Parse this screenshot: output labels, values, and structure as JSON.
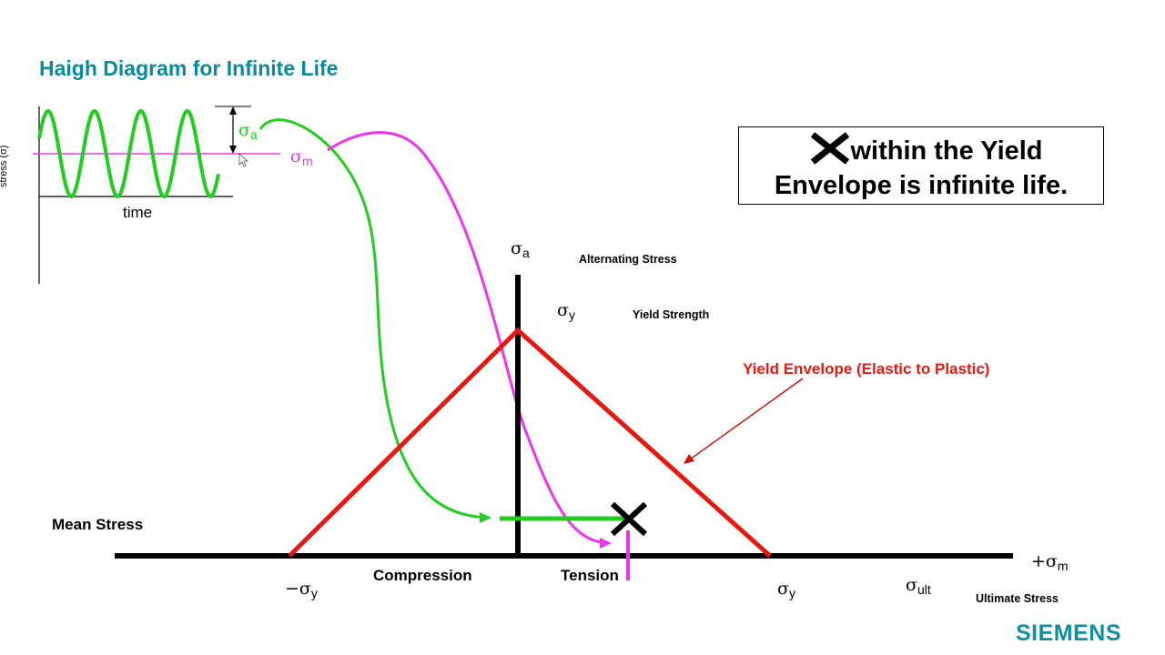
{
  "title": "Haigh Diagram for Infinite Life",
  "callout": {
    "icon": "x-mark-icon",
    "line1": "within the Yield",
    "line2": "Envelope is infinite life."
  },
  "inset": {
    "ylabel": "stress (σ)",
    "xlabel": "time",
    "sigma_a": "σ",
    "sigma_a_sub": "a",
    "sigma_m": "σ",
    "sigma_m_sub": "m"
  },
  "labels": {
    "sigma_a_axis": "σ",
    "sigma_a_axis_sub": "a",
    "alternating_stress": "Alternating Stress",
    "sigma_y_top": "σ",
    "sigma_y_top_sub": "y",
    "yield_strength": "Yield Strength",
    "yield_envelope": "Yield Envelope (Elastic to Plastic)",
    "mean_stress": "Mean Stress",
    "neg_sigma_y": "−σ",
    "neg_sigma_y_sub": "y",
    "compression": "Compression",
    "tension": "Tension",
    "pos_sigma_y": "σ",
    "pos_sigma_y_sub": "y",
    "sigma_ult": "σ",
    "sigma_ult_sub": "ult",
    "ultimate_stress": "Ultimate Stress",
    "plus_sigma_m": "+σ",
    "plus_sigma_m_sub": "m"
  },
  "brand": "SIEMENS",
  "colors": {
    "title": "#0a8a96",
    "envelope": "#e41a12",
    "alternating_curve": "#22cc22",
    "mean_curve": "#ee33ee",
    "brand": "#0f8fa0"
  }
}
